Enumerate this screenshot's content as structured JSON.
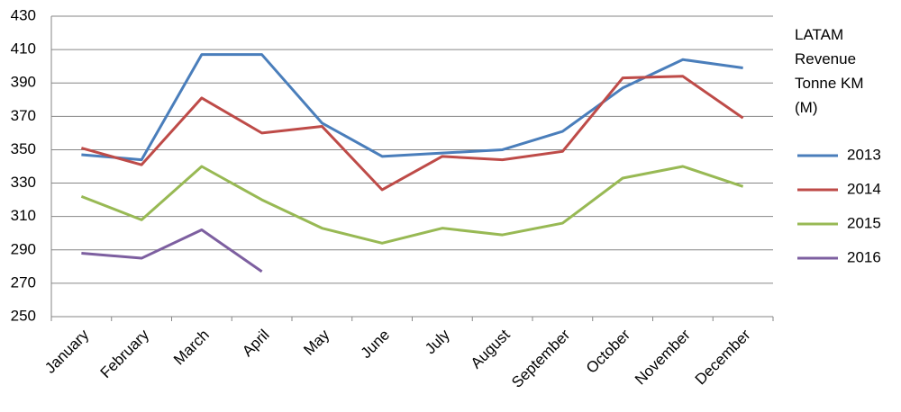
{
  "chart_data": {
    "type": "line",
    "title": "LATAM Revenue Tonne KM (M)",
    "categories": [
      "January",
      "February",
      "March",
      "April",
      "May",
      "June",
      "July",
      "August",
      "September",
      "October",
      "November",
      "December"
    ],
    "series": [
      {
        "name": "2013",
        "color": "#4a7ebb",
        "values": [
          347,
          344,
          407,
          407,
          366,
          346,
          348,
          350,
          361,
          387,
          404,
          399
        ]
      },
      {
        "name": "2014",
        "color": "#be4b48",
        "values": [
          351,
          341,
          381,
          360,
          364,
          326,
          346,
          344,
          349,
          393,
          394,
          369
        ]
      },
      {
        "name": "2015",
        "color": "#98b954",
        "values": [
          322,
          308,
          340,
          320,
          303,
          294,
          303,
          299,
          306,
          333,
          340,
          328
        ]
      },
      {
        "name": "2016",
        "color": "#7d5fa0",
        "values": [
          288,
          285,
          302,
          277,
          null,
          null,
          null,
          null,
          null,
          null,
          null,
          null
        ]
      }
    ],
    "ylim": [
      250,
      430
    ],
    "yticks": [
      250,
      270,
      290,
      310,
      330,
      350,
      370,
      390,
      410,
      430
    ],
    "grid": true,
    "legend": "right"
  }
}
